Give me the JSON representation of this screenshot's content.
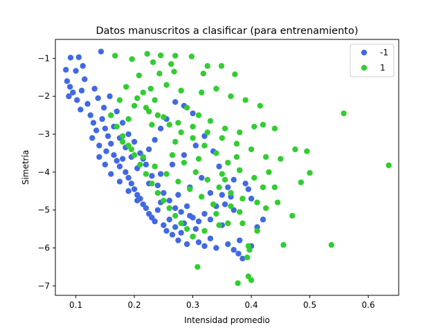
{
  "chart_data": {
    "type": "scatter",
    "title": "Datos manuscritos a clasificar (para entrenamiento)",
    "xlabel": "Intensidad promedio",
    "ylabel": "Simetría",
    "xlim": [
      0.065,
      0.652
    ],
    "ylim": [
      -7.25,
      -0.5
    ],
    "xticks": [
      0.1,
      0.2,
      0.3,
      0.4,
      0.5,
      0.6
    ],
    "xtick_labels": [
      "0.1",
      "0.2",
      "0.3",
      "0.4",
      "0.5",
      "0.6"
    ],
    "yticks": [
      -1,
      -2,
      -3,
      -4,
      -5,
      -6,
      -7
    ],
    "ytick_labels": [
      "−1",
      "−2",
      "−3",
      "−4",
      "−5",
      "−6",
      "−7"
    ],
    "grid": false,
    "legend_position": "top-right",
    "series": [
      {
        "name": "-1",
        "color": "#4169E1",
        "points": [
          [
            0.143,
            -0.82
          ],
          [
            0.091,
            -0.98
          ],
          [
            0.105,
            -0.97
          ],
          [
            0.083,
            -1.3
          ],
          [
            0.1,
            -1.33
          ],
          [
            0.112,
            -1.2
          ],
          [
            0.085,
            -1.6
          ],
          [
            0.09,
            -1.75
          ],
          [
            0.095,
            -1.9
          ],
          [
            0.088,
            -2.0
          ],
          [
            0.102,
            -2.1
          ],
          [
            0.11,
            -1.85
          ],
          [
            0.12,
            -2.2
          ],
          [
            0.108,
            -2.35
          ],
          [
            0.115,
            -1.55
          ],
          [
            0.125,
            -2.5
          ],
          [
            0.13,
            -2.7
          ],
          [
            0.135,
            -2.9
          ],
          [
            0.128,
            -3.1
          ],
          [
            0.14,
            -3.3
          ],
          [
            0.145,
            -2.6
          ],
          [
            0.15,
            -2.85
          ],
          [
            0.155,
            -3.05
          ],
          [
            0.16,
            -3.25
          ],
          [
            0.152,
            -3.45
          ],
          [
            0.165,
            -3.55
          ],
          [
            0.17,
            -3.7
          ],
          [
            0.175,
            -3.85
          ],
          [
            0.18,
            -3.65
          ],
          [
            0.185,
            -4.0
          ],
          [
            0.19,
            -4.15
          ],
          [
            0.195,
            -4.3
          ],
          [
            0.2,
            -4.45
          ],
          [
            0.205,
            -4.6
          ],
          [
            0.21,
            -4.7
          ],
          [
            0.215,
            -4.85
          ],
          [
            0.22,
            -4.95
          ],
          [
            0.225,
            -5.1
          ],
          [
            0.23,
            -5.2
          ],
          [
            0.235,
            -5.3
          ],
          [
            0.24,
            -5.0
          ],
          [
            0.245,
            -4.8
          ],
          [
            0.25,
            -5.4
          ],
          [
            0.255,
            -5.55
          ],
          [
            0.26,
            -5.25
          ],
          [
            0.265,
            -5.65
          ],
          [
            0.27,
            -5.45
          ],
          [
            0.275,
            -5.8
          ],
          [
            0.28,
            -5.6
          ],
          [
            0.285,
            -5.35
          ],
          [
            0.29,
            -5.9
          ],
          [
            0.295,
            -5.15
          ],
          [
            0.3,
            -5.7
          ],
          [
            0.305,
            -5.5
          ],
          [
            0.31,
            -5.85
          ],
          [
            0.32,
            -5.95
          ],
          [
            0.33,
            -5.75
          ],
          [
            0.34,
            -6.0
          ],
          [
            0.35,
            -5.4
          ],
          [
            0.36,
            -5.9
          ],
          [
            0.37,
            -6.05
          ],
          [
            0.378,
            -6.15
          ],
          [
            0.385,
            -6.28
          ],
          [
            0.38,
            -5.8
          ],
          [
            0.4,
            -5.95
          ],
          [
            0.158,
            -2.0
          ],
          [
            0.17,
            -2.4
          ],
          [
            0.18,
            -2.7
          ],
          [
            0.19,
            -3.0
          ],
          [
            0.2,
            -3.2
          ],
          [
            0.21,
            -3.5
          ],
          [
            0.22,
            -3.8
          ],
          [
            0.23,
            -4.1
          ],
          [
            0.24,
            -4.35
          ],
          [
            0.25,
            -4.55
          ],
          [
            0.26,
            -4.75
          ],
          [
            0.27,
            -4.95
          ],
          [
            0.28,
            -5.05
          ],
          [
            0.29,
            -4.9
          ],
          [
            0.3,
            -5.2
          ],
          [
            0.31,
            -5.3
          ],
          [
            0.32,
            -5.1
          ],
          [
            0.33,
            -5.25
          ],
          [
            0.34,
            -4.9
          ],
          [
            0.35,
            -4.6
          ],
          [
            0.36,
            -4.4
          ],
          [
            0.37,
            -4.2
          ],
          [
            0.38,
            -3.95
          ],
          [
            0.39,
            -4.3
          ],
          [
            0.4,
            -4.7
          ],
          [
            0.41,
            -5.45
          ],
          [
            0.42,
            -5.25
          ],
          [
            0.37,
            -5.0
          ],
          [
            0.355,
            -4.85
          ],
          [
            0.395,
            -4.45
          ],
          [
            0.27,
            -2.15
          ],
          [
            0.285,
            -2.25
          ],
          [
            0.3,
            -2.45
          ],
          [
            0.255,
            -2.6
          ],
          [
            0.245,
            -2.85
          ],
          [
            0.235,
            -3.15
          ],
          [
            0.225,
            -3.4
          ],
          [
            0.215,
            -3.65
          ],
          [
            0.205,
            -3.9
          ],
          [
            0.195,
            -3.6
          ],
          [
            0.185,
            -3.35
          ],
          [
            0.175,
            -3.1
          ],
          [
            0.165,
            -2.8
          ],
          [
            0.148,
            -2.3
          ],
          [
            0.138,
            -2.05
          ],
          [
            0.132,
            -1.8
          ],
          [
            0.14,
            -3.6
          ],
          [
            0.15,
            -3.8
          ],
          [
            0.16,
            -4.05
          ],
          [
            0.175,
            -4.25
          ],
          [
            0.19,
            -4.5
          ],
          [
            0.205,
            -4.75
          ],
          [
            0.225,
            -4.3
          ],
          [
            0.245,
            -4.05
          ],
          [
            0.265,
            -3.8
          ],
          [
            0.285,
            -3.55
          ],
          [
            0.305,
            -3.3
          ],
          [
            0.32,
            -3.05
          ],
          [
            0.335,
            -3.45
          ],
          [
            0.345,
            -3.85
          ],
          [
            0.315,
            -4.15
          ],
          [
            0.295,
            -4.4
          ],
          [
            0.275,
            -4.6
          ],
          [
            0.33,
            -4.55
          ],
          [
            0.365,
            -4.65
          ]
        ]
      },
      {
        "name": "1",
        "color": "#32CD32",
        "points": [
          [
            0.167,
            -0.93
          ],
          [
            0.222,
            -0.88
          ],
          [
            0.245,
            -0.92
          ],
          [
            0.27,
            -0.93
          ],
          [
            0.298,
            -0.95
          ],
          [
            0.196,
            -1.02
          ],
          [
            0.232,
            -1.1
          ],
          [
            0.263,
            -1.15
          ],
          [
            0.325,
            -1.2
          ],
          [
            0.349,
            -1.2
          ],
          [
            0.208,
            -1.45
          ],
          [
            0.243,
            -1.4
          ],
          [
            0.268,
            -1.35
          ],
          [
            0.318,
            -1.4
          ],
          [
            0.372,
            -1.42
          ],
          [
            0.186,
            -1.75
          ],
          [
            0.228,
            -1.8
          ],
          [
            0.255,
            -1.7
          ],
          [
            0.28,
            -1.85
          ],
          [
            0.315,
            -1.9
          ],
          [
            0.34,
            -1.8
          ],
          [
            0.365,
            -2.0
          ],
          [
            0.39,
            -2.1
          ],
          [
            0.415,
            -2.25
          ],
          [
            0.175,
            -2.1
          ],
          [
            0.2,
            -2.25
          ],
          [
            0.225,
            -2.4
          ],
          [
            0.25,
            -2.55
          ],
          [
            0.275,
            -2.7
          ],
          [
            0.3,
            -2.8
          ],
          [
            0.325,
            -2.95
          ],
          [
            0.35,
            -3.1
          ],
          [
            0.375,
            -3.25
          ],
          [
            0.4,
            -3.4
          ],
          [
            0.425,
            -3.6
          ],
          [
            0.45,
            -3.65
          ],
          [
            0.475,
            -3.4
          ],
          [
            0.495,
            -3.45
          ],
          [
            0.5,
            -4.02
          ],
          [
            0.485,
            -4.27
          ],
          [
            0.47,
            -5.15
          ],
          [
            0.455,
            -5.92
          ],
          [
            0.537,
            -5.92
          ],
          [
            0.558,
            -2.45
          ],
          [
            0.635,
            -3.82
          ],
          [
            0.16,
            -2.5
          ],
          [
            0.17,
            -2.8
          ],
          [
            0.18,
            -3.05
          ],
          [
            0.19,
            -3.3
          ],
          [
            0.2,
            -3.55
          ],
          [
            0.21,
            -3.8
          ],
          [
            0.22,
            -4.05
          ],
          [
            0.23,
            -4.3
          ],
          [
            0.24,
            -4.55
          ],
          [
            0.25,
            -4.75
          ],
          [
            0.26,
            -4.95
          ],
          [
            0.27,
            -5.15
          ],
          [
            0.28,
            -5.35
          ],
          [
            0.29,
            -5.5
          ],
          [
            0.3,
            -5.7
          ],
          [
            0.308,
            -6.5
          ],
          [
            0.345,
            -5.4
          ],
          [
            0.36,
            -5.35
          ],
          [
            0.385,
            -5.35
          ],
          [
            0.395,
            -5.95
          ],
          [
            0.397,
            -6.05
          ],
          [
            0.393,
            -6.25
          ],
          [
            0.395,
            -6.75
          ],
          [
            0.4,
            -6.85
          ],
          [
            0.377,
            -6.93
          ],
          [
            0.41,
            -4.8
          ],
          [
            0.42,
            -4.4
          ],
          [
            0.44,
            -4.4
          ],
          [
            0.445,
            -4.8
          ],
          [
            0.43,
            -4.0
          ],
          [
            0.38,
            -3.95
          ],
          [
            0.36,
            -3.75
          ],
          [
            0.34,
            -3.5
          ],
          [
            0.32,
            -3.3
          ],
          [
            0.3,
            -3.1
          ],
          [
            0.28,
            -2.95
          ],
          [
            0.26,
            -2.75
          ],
          [
            0.24,
            -2.5
          ],
          [
            0.22,
            -2.3
          ],
          [
            0.205,
            -2.05
          ],
          [
            0.215,
            -1.9
          ],
          [
            0.235,
            -2.1
          ],
          [
            0.29,
            -2.3
          ],
          [
            0.31,
            -2.5
          ],
          [
            0.33,
            -2.65
          ],
          [
            0.355,
            -2.85
          ],
          [
            0.38,
            -2.95
          ],
          [
            0.405,
            -2.8
          ],
          [
            0.42,
            -2.75
          ],
          [
            0.44,
            -2.85
          ],
          [
            0.265,
            -3.55
          ],
          [
            0.285,
            -3.75
          ],
          [
            0.305,
            -4.0
          ],
          [
            0.325,
            -4.2
          ],
          [
            0.345,
            -4.4
          ],
          [
            0.365,
            -4.55
          ],
          [
            0.385,
            -4.7
          ],
          [
            0.335,
            -4.85
          ],
          [
            0.315,
            -4.65
          ],
          [
            0.295,
            -4.45
          ],
          [
            0.275,
            -4.25
          ],
          [
            0.255,
            -4.05
          ],
          [
            0.235,
            -3.85
          ],
          [
            0.215,
            -3.6
          ],
          [
            0.195,
            -3.4
          ],
          [
            0.18,
            -3.2
          ],
          [
            0.19,
            -2.6
          ],
          [
            0.23,
            -2.75
          ],
          [
            0.27,
            -3.2
          ],
          [
            0.31,
            -3.65
          ],
          [
            0.35,
            -4.05
          ],
          [
            0.405,
            -4.15
          ],
          [
            0.425,
            -4.95
          ],
          [
            0.41,
            -5.55
          ],
          [
            0.38,
            -5.05
          ],
          [
            0.365,
            -4.9
          ],
          [
            0.34,
            -5.1
          ],
          [
            0.32,
            -5.55
          ],
          [
            0.355,
            -4.2
          ],
          [
            0.375,
            -3.6
          ]
        ]
      }
    ]
  }
}
